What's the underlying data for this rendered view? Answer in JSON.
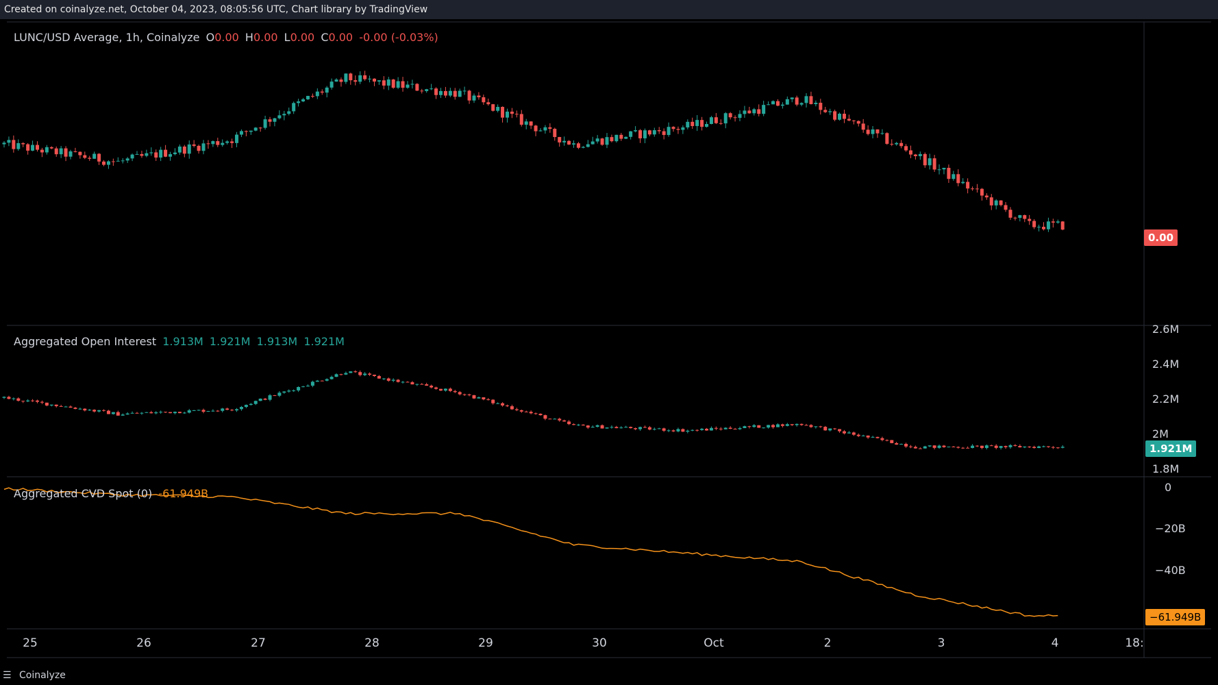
{
  "header": "Created on coinalyze.net, October 04, 2023, 08:05:56 UTC, Chart library by TradingView",
  "footer": {
    "logo_icon": "menu-lines-icon",
    "brand": "Coinalyze"
  },
  "colors": {
    "up": "#26a69a",
    "down": "#ef5350",
    "cvd": "#f7931a",
    "oi_tag": "#26a69a",
    "price_tag": "#ef5350"
  },
  "panes": {
    "price": {
      "title": "LUNC/USD Average, 1h, Coinalyze",
      "o_label": "O",
      "o_value": "0.00",
      "h_label": "H",
      "h_value": "0.00",
      "l_label": "L",
      "l_value": "0.00",
      "c_label": "C",
      "c_value": "0.00",
      "change": "-0.00 (-0.03%)",
      "last_tag": "0.00"
    },
    "oi": {
      "title": "Aggregated Open Interest",
      "v1": "1.913M",
      "v2": "1.921M",
      "v3": "1.913M",
      "v4": "1.921M",
      "last_tag": "1.921M",
      "y_ticks": [
        "2.6M",
        "2.4M",
        "2.2M",
        "2M",
        "1.8M"
      ]
    },
    "cvd": {
      "title": "Aggregated CVD Spot (0)",
      "value": "-61.949B",
      "last_tag": "−61.949B",
      "y_ticks": [
        "0",
        "−20B",
        "−40B"
      ]
    }
  },
  "x_axis": [
    "25",
    "26",
    "27",
    "28",
    "29",
    "30",
    "Oct",
    "2",
    "3",
    "4",
    "18:"
  ],
  "chart_data": [
    {
      "type": "line",
      "title": "LUNC/USD Average, 1h, Coinalyze",
      "note": "hourly candlestick price, approximate relative level (0-100 scale of visible range)",
      "x": [
        "25",
        "26",
        "27",
        "28",
        "29",
        "30",
        "Oct",
        "2",
        "3",
        "4"
      ],
      "series": [
        {
          "values": [
            62,
            55,
            64,
            88,
            82,
            62,
            69,
            80,
            58,
            30
          ]
        }
      ]
    },
    {
      "type": "line",
      "title": "Aggregated Open Interest",
      "x": [
        "25",
        "26",
        "27",
        "28",
        "29",
        "30",
        "Oct",
        "2",
        "3",
        "4"
      ],
      "ylim": [
        1.75,
        2.65
      ],
      "series": [
        {
          "values": [
            2.22,
            2.12,
            2.15,
            2.38,
            2.25,
            2.05,
            2.02,
            2.06,
            1.92,
            1.921
          ]
        }
      ]
    },
    {
      "type": "line",
      "title": "Aggregated CVD Spot (0)",
      "x": [
        "25",
        "26",
        "27",
        "28",
        "29",
        "30",
        "Oct",
        "2",
        "3",
        "4"
      ],
      "ylim": [
        -66,
        2
      ],
      "series": [
        {
          "values": [
            -1,
            -4,
            -5,
            -13,
            -13,
            -28,
            -32,
            -36,
            -52,
            -61.949
          ]
        }
      ]
    }
  ]
}
